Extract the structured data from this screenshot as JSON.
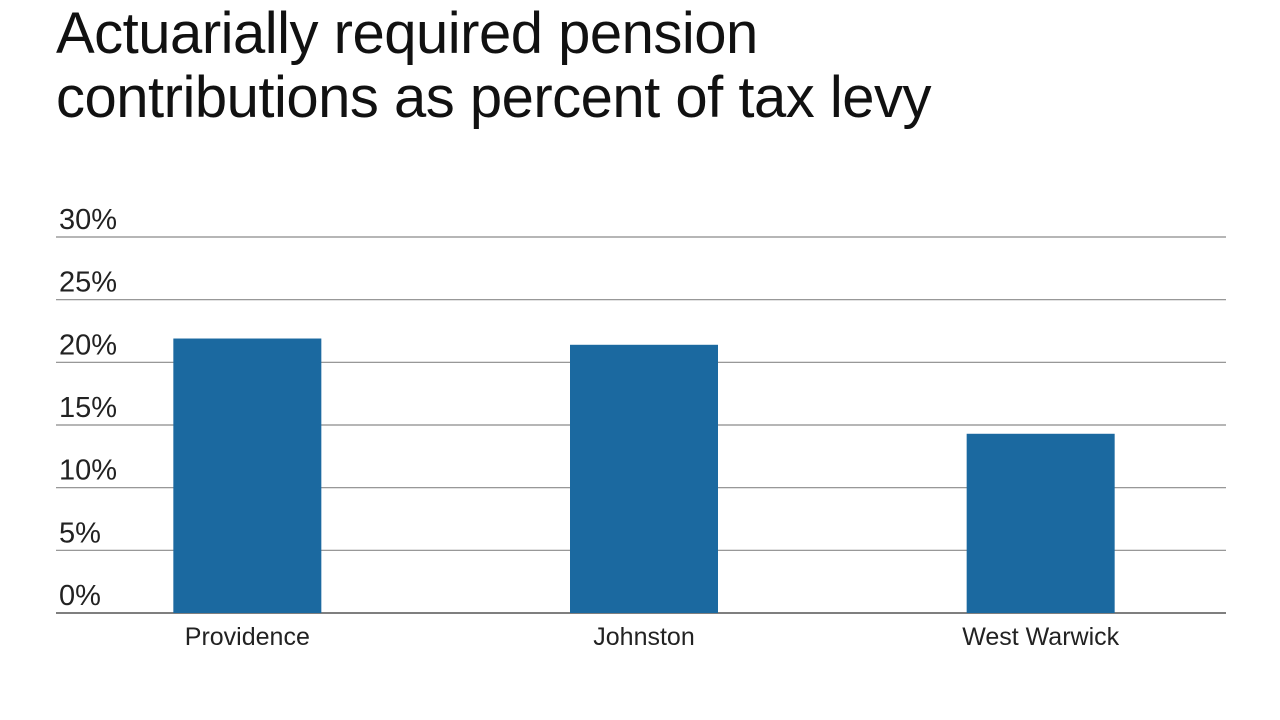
{
  "title_lines": [
    "Actuarially required pension",
    "contributions as percent of tax levy"
  ],
  "chart_data": {
    "type": "bar",
    "title": "Actuarially required pension contributions as percent of tax levy",
    "categories": [
      "Providence",
      "Johnston",
      "West Warwick"
    ],
    "values": [
      21.9,
      21.4,
      14.3
    ],
    "ylim": [
      0,
      30
    ],
    "yticks": [
      0,
      5,
      10,
      15,
      20,
      25,
      30
    ],
    "ytick_labels": [
      "0%",
      "5%",
      "10%",
      "15%",
      "20%",
      "25%",
      "30%"
    ],
    "xlabel": "",
    "ylabel": "",
    "grid": true,
    "bar_color": "#1b69a0",
    "grid_color": "#8a8a8a"
  }
}
